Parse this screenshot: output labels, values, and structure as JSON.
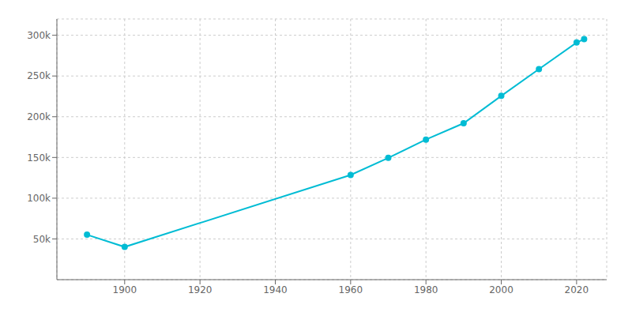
{
  "chart_data": {
    "type": "line",
    "x": [
      1890,
      1900,
      1960,
      1970,
      1980,
      1990,
      2000,
      2010,
      2020,
      2022
    ],
    "values": [
      55154,
      40169,
      128521,
      149518,
      171932,
      191972,
      225581,
      258379,
      291082,
      295178
    ],
    "color": "#00bcd4",
    "marker": "circle",
    "xlim": [
      1882,
      2028
    ],
    "ylim": [
      0,
      320000
    ],
    "xticks": [
      1900,
      1920,
      1940,
      1960,
      1980,
      2000,
      2020
    ],
    "yticks": [
      {
        "value": 50000,
        "label": "50k"
      },
      {
        "value": 100000,
        "label": "100k"
      },
      {
        "value": 150000,
        "label": "150k"
      },
      {
        "value": 200000,
        "label": "200k"
      },
      {
        "value": 250000,
        "label": "250k"
      },
      {
        "value": 300000,
        "label": "300k"
      }
    ],
    "grid": true
  }
}
